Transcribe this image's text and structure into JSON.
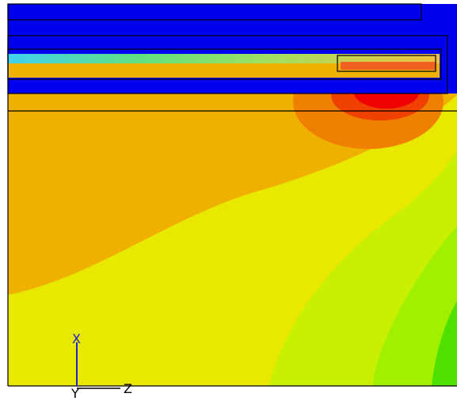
{
  "triad": {
    "x": "X",
    "y": "Y",
    "z": "Z"
  }
}
